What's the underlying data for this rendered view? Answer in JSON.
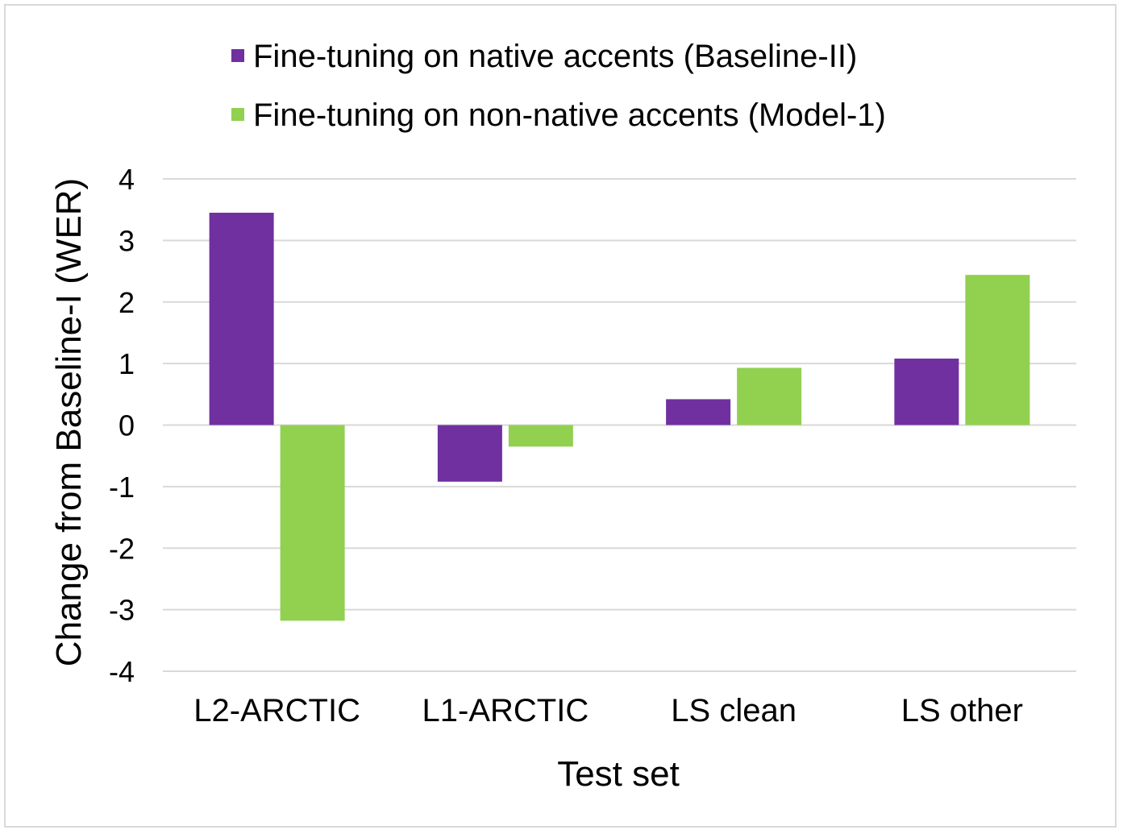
{
  "chart_data": {
    "type": "bar",
    "categories": [
      "L2-ARCTIC",
      "L1-ARCTIC",
      "LS clean",
      "LS other"
    ],
    "series": [
      {
        "name": "Fine-tuning on native accents (Baseline-II)",
        "color": "#7030a0",
        "values": [
          3.45,
          -0.92,
          0.42,
          1.08
        ]
      },
      {
        "name": "Fine-tuning on non-native accents (Model-1)",
        "color": "#92d050",
        "values": [
          -3.18,
          -0.35,
          0.93,
          2.44
        ]
      }
    ],
    "xlabel": "Test set",
    "ylabel": "Change from Baseline-I (WER)",
    "ylim": [
      -4,
      4
    ],
    "yticks": [
      4,
      3,
      2,
      1,
      0,
      -1,
      -2,
      -3,
      -4
    ],
    "ytick_labels": [
      "4",
      "3",
      "2",
      "1",
      "0",
      "-1",
      "-2",
      "-3",
      "-4"
    ],
    "grid": true,
    "legend_position": "top"
  }
}
